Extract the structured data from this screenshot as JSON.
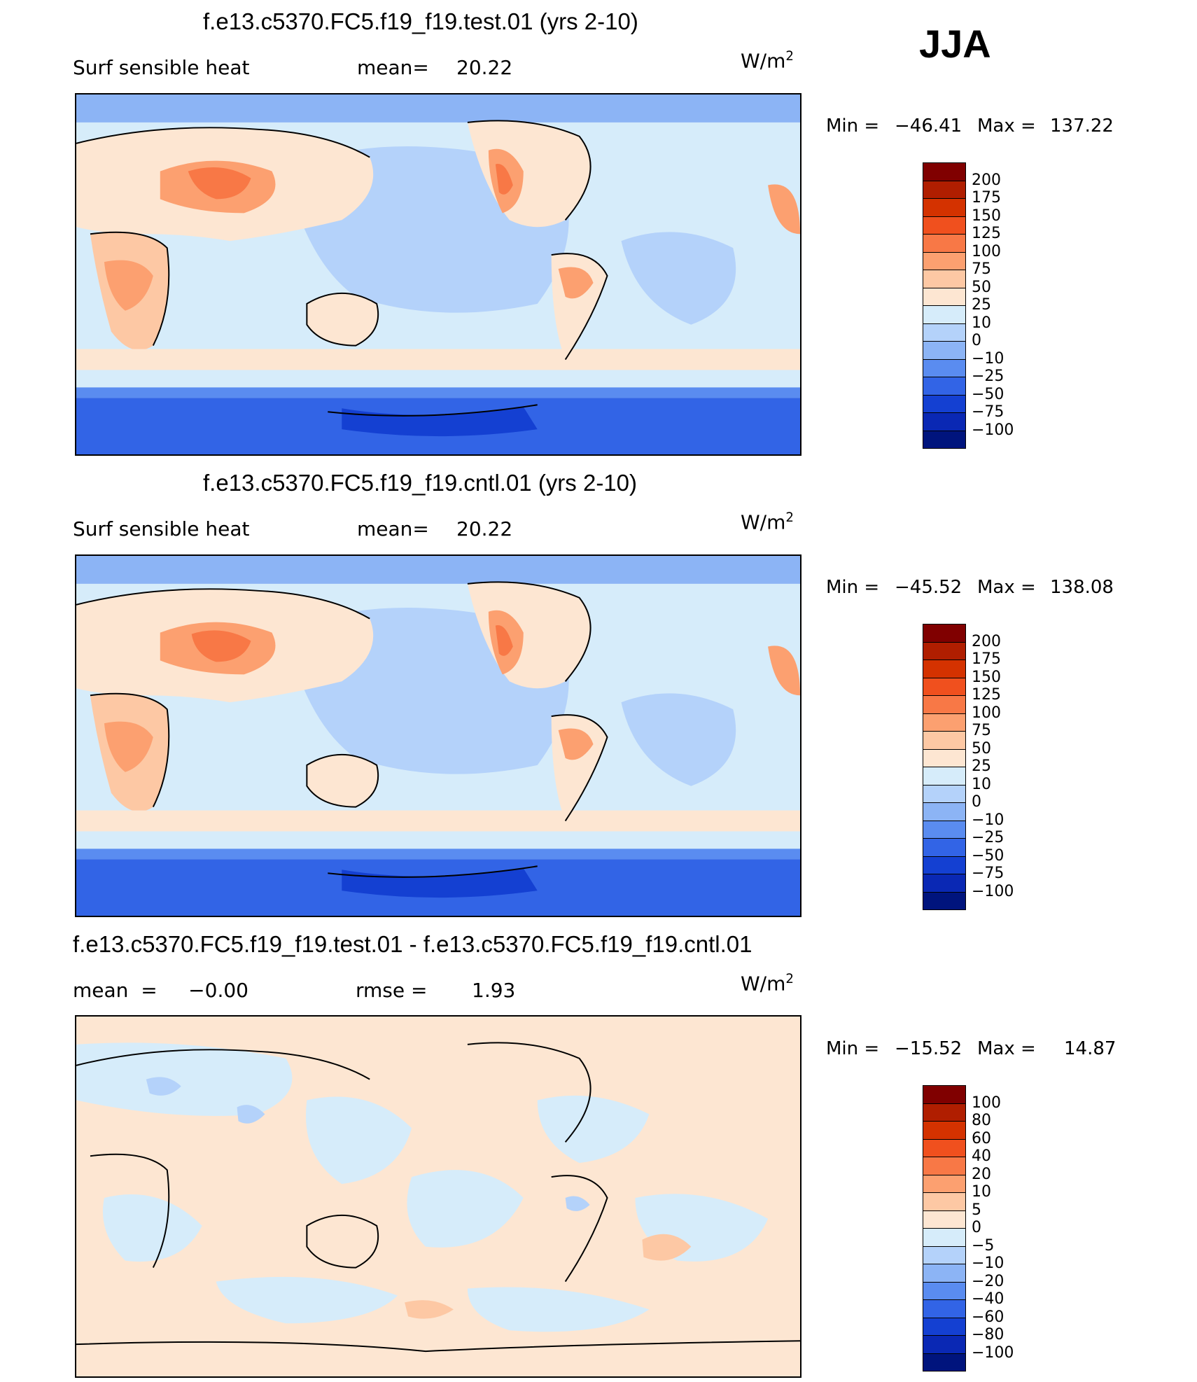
{
  "season": "JJA",
  "panels": [
    {
      "title": "f.e13.c5370.FC5.f19_f19.test.01 (yrs 2-10)",
      "left_label": "Surf  sensible  heat",
      "mean_label": "mean=",
      "mean_value": "20.22",
      "units_base": "W/m",
      "units_exp": "2",
      "min_label": "Min  =",
      "min_value": "−46.41",
      "max_label": "Max  =",
      "max_value": "137.22"
    },
    {
      "title": "f.e13.c5370.FC5.f19_f19.cntl.01 (yrs 2-10)",
      "left_label": "Surf  sensible  heat",
      "mean_label": "mean=",
      "mean_value": "20.22",
      "units_base": "W/m",
      "units_exp": "2",
      "min_label": "Min  =",
      "min_value": "−45.52",
      "max_label": "Max  =",
      "max_value": "138.08"
    },
    {
      "title": "f.e13.c5370.FC5.f19_f19.test.01 - f.e13.c5370.FC5.f19_f19.cntl.01",
      "left_label": "mean  =     −0.00",
      "mean_label": "rmse  =",
      "mean_value": "1.93",
      "units_base": "W/m",
      "units_exp": "2",
      "min_label": "Min  =",
      "min_value": "−15.52",
      "max_label": "Max  =",
      "max_value": "14.87"
    }
  ],
  "chart_data": [
    {
      "type": "heatmap",
      "title": "f.e13.c5370.FC5.f19_f19.test.01 (yrs 2-10)",
      "variable": "Surf sensible heat",
      "units": "W/m2",
      "mean": 20.22,
      "min": -46.41,
      "max": 137.22,
      "colorbar": {
        "levels": [
          "200",
          "175",
          "150",
          "125",
          "100",
          "75",
          "50",
          "25",
          "10",
          "0",
          "−10",
          "−25",
          "−50",
          "−75",
          "−100"
        ],
        "colors": [
          "#800000",
          "#b01e00",
          "#d43200",
          "#f0501e",
          "#f87846",
          "#fca070",
          "#fdc8a4",
          "#fde6d2",
          "#d6ecfa",
          "#b4d2fa",
          "#8cb4f5",
          "#5a8cf0",
          "#3264e6",
          "#1440d2",
          "#0a28b4",
          "#00147d"
        ]
      }
    },
    {
      "type": "heatmap",
      "title": "f.e13.c5370.FC5.f19_f19.cntl.01 (yrs 2-10)",
      "variable": "Surf sensible heat",
      "units": "W/m2",
      "mean": 20.22,
      "min": -45.52,
      "max": 138.08,
      "colorbar": {
        "levels": [
          "200",
          "175",
          "150",
          "125",
          "100",
          "75",
          "50",
          "25",
          "10",
          "0",
          "−10",
          "−25",
          "−50",
          "−75",
          "−100"
        ],
        "colors": [
          "#800000",
          "#b01e00",
          "#d43200",
          "#f0501e",
          "#f87846",
          "#fca070",
          "#fdc8a4",
          "#fde6d2",
          "#d6ecfa",
          "#b4d2fa",
          "#8cb4f5",
          "#5a8cf0",
          "#3264e6",
          "#1440d2",
          "#0a28b4",
          "#00147d"
        ]
      }
    },
    {
      "type": "heatmap",
      "title": "f.e13.c5370.FC5.f19_f19.test.01 - f.e13.c5370.FC5.f19_f19.cntl.01",
      "units": "W/m2",
      "mean": -0.0,
      "rmse": 1.93,
      "min": -15.52,
      "max": 14.87,
      "colorbar": {
        "levels": [
          "100",
          "80",
          "60",
          "40",
          "20",
          "10",
          "5",
          "0",
          "−5",
          "−10",
          "−20",
          "−40",
          "−60",
          "−80",
          "−100"
        ],
        "colors": [
          "#800000",
          "#b01e00",
          "#d43200",
          "#f0501e",
          "#f87846",
          "#fca070",
          "#fdc8a4",
          "#fde6d2",
          "#d6ecfa",
          "#b4d2fa",
          "#8cb4f5",
          "#5a8cf0",
          "#3264e6",
          "#1440d2",
          "#0a28b4",
          "#00147d"
        ]
      }
    }
  ]
}
